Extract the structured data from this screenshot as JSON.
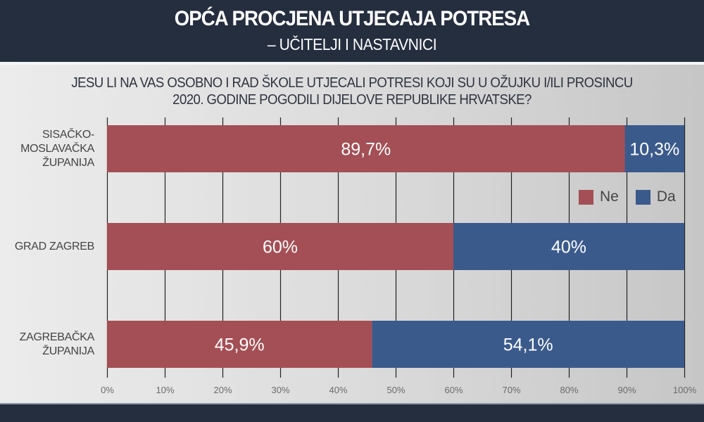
{
  "header": {
    "title": "OPĆA PROCJENA UTJECAJA POTRESA",
    "subtitle": "– UČITELJI I NASTAVNICI"
  },
  "chart_data": {
    "type": "bar",
    "orientation": "horizontal",
    "stacked": true,
    "title": "JESU LI NA VAS OSOBNO I RAD ŠKOLE UTJECALI POTRESI KOJI SU U OŽUJKU I/ILI PROSINCU 2020. GODINE POGODILI DIJELOVE REPUBLIKE HRVATSKE?",
    "title_lines": [
      "JESU LI NA VAS OSOBNO I RAD ŠKOLE UTJECALI POTRESI KOJI SU U OŽUJKU I/ILI PROSINCU",
      "2020. GODINE POGODILI DIJELOVE REPUBLIKE HRVATSKE?"
    ],
    "categories": [
      "SISAČKO-MOSLAVAČKA ŽUPANIJA",
      "GRAD ZAGREB",
      "ZAGREBAČKA ŽUPANIJA"
    ],
    "category_lines": [
      [
        "SISAČKO-",
        "MOSLAVAČKA",
        "ŽUPANIJA"
      ],
      [
        "GRAD ZAGREB"
      ],
      [
        "ZAGREBAČKA",
        "ŽUPANIJA"
      ]
    ],
    "series": [
      {
        "name": "Ne",
        "color": "#a44f55",
        "values": [
          89.7,
          60,
          45.9
        ],
        "labels": [
          "89,7%",
          "60%",
          "45,9%"
        ]
      },
      {
        "name": "Da",
        "color": "#3b5a8c",
        "values": [
          10.3,
          40,
          54.1
        ],
        "labels": [
          "10,3%",
          "40%",
          "54,1%"
        ]
      }
    ],
    "xlim": [
      0,
      100
    ],
    "xticks": [
      0,
      10,
      20,
      30,
      40,
      50,
      60,
      70,
      80,
      90,
      100
    ],
    "xtick_labels": [
      "0%",
      "10%",
      "20%",
      "30%",
      "40%",
      "50%",
      "60%",
      "70%",
      "80%",
      "90%",
      "100%"
    ],
    "grid": true,
    "legend_position": "right"
  }
}
